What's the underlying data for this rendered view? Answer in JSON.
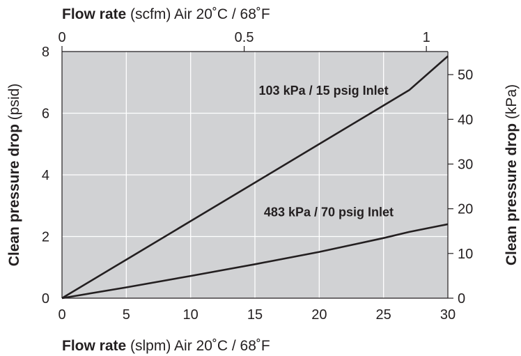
{
  "chart_data": {
    "type": "line",
    "title": "",
    "grid": true,
    "plot_background": "#d1d2d4",
    "grid_color": "#ffffff",
    "line_color": "#231f20",
    "x_bottom": {
      "title_bold": "Flow rate",
      "title_rest": " (slpm) Air 20˚C / 68˚F",
      "range": [
        0,
        30
      ],
      "ticks": [
        0,
        5,
        10,
        15,
        20,
        25,
        30
      ],
      "tick_labels": [
        "0",
        "5",
        "10",
        "15",
        "20",
        "25",
        "30"
      ]
    },
    "x_top": {
      "title_bold": "Flow rate",
      "title_rest": " (scfm) Air 20˚C / 68˚F",
      "range": [
        0,
        1.059
      ],
      "ticks": [
        0,
        0.5,
        1
      ],
      "tick_labels": [
        "0",
        "0.5",
        "1"
      ]
    },
    "y_left": {
      "title_bold": "Clean pressure drop",
      "title_rest": " (psid)",
      "range": [
        0,
        8
      ],
      "ticks": [
        0,
        2,
        4,
        6,
        8
      ],
      "tick_labels": [
        "0",
        "2",
        "4",
        "6",
        "8"
      ]
    },
    "y_right": {
      "title_bold": "Clean pressure drop",
      "title_rest": " (kPa)",
      "range": [
        0,
        55.16
      ],
      "ticks": [
        0,
        10,
        20,
        30,
        40,
        50
      ],
      "tick_labels": [
        "0",
        "10",
        "20",
        "30",
        "40",
        "50"
      ]
    },
    "series": [
      {
        "name": "103 kPa / 15 psig Inlet",
        "x": [
          0,
          5,
          10,
          15,
          20,
          25,
          27,
          30
        ],
        "y": [
          0,
          1.25,
          2.5,
          3.75,
          5.0,
          6.25,
          6.75,
          7.85
        ]
      },
      {
        "name": "483 kPa / 70 psig Inlet",
        "x": [
          0,
          5,
          10,
          15,
          20,
          25,
          27,
          30
        ],
        "y": [
          0,
          0.35,
          0.72,
          1.1,
          1.5,
          1.95,
          2.15,
          2.4
        ]
      }
    ]
  }
}
